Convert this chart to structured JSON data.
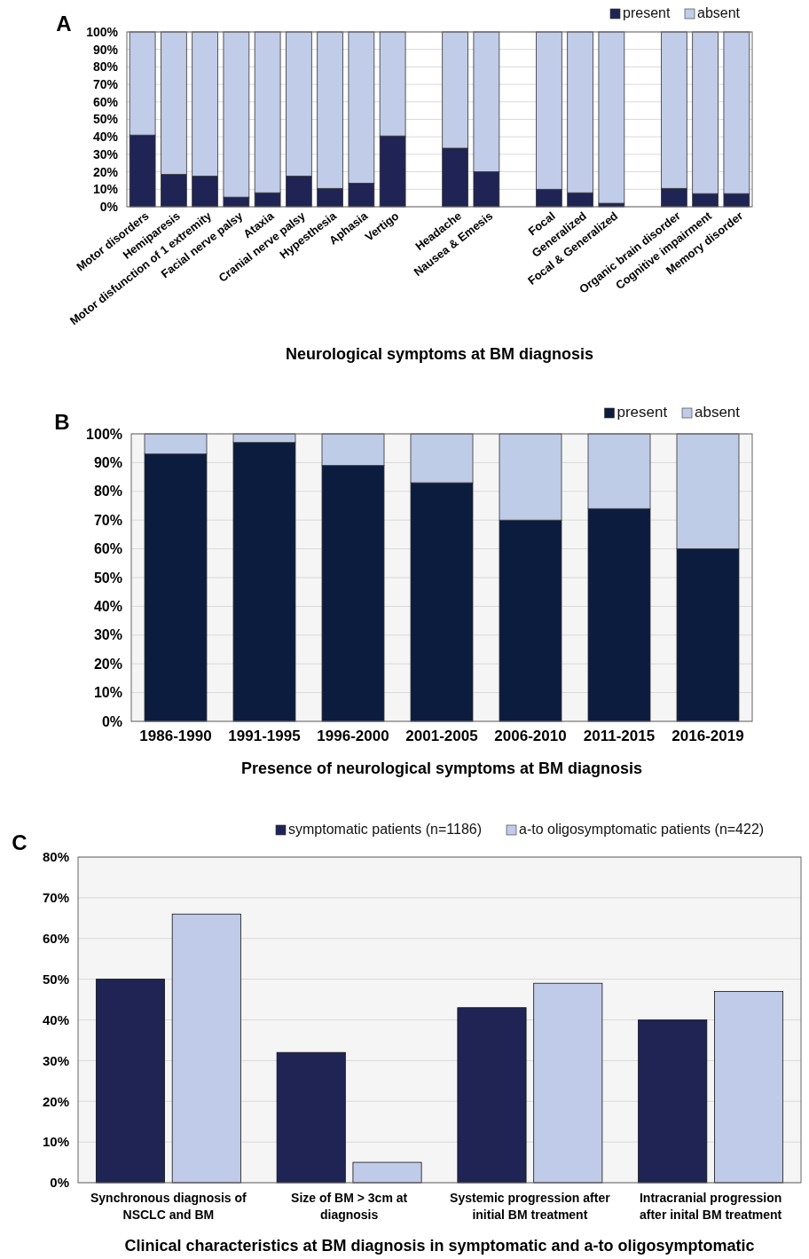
{
  "chart_data": [
    {
      "type": "bar",
      "title": "Neurological symptoms at BM diagnosis",
      "annotations": [
        "A"
      ],
      "stacked": true,
      "categories": [
        "Motor disorders",
        "Hemiparesis",
        "Motor disfunction of 1 extremity",
        "Facial nerve palsy",
        "Ataxia",
        "Cranial nerve palsy",
        "Hypesthesia",
        "Aphasia",
        "Vertigo",
        null,
        "Headache",
        "Nausea & Emesis",
        null,
        "Focal",
        "Generalized",
        "Focal & Generalized",
        null,
        "Organic brain disorder",
        "Cognitive impairment",
        "Memory disorder"
      ],
      "series": [
        {
          "name": "present",
          "color": "#1f2455",
          "values": [
            41,
            18.5,
            17.5,
            5.5,
            8,
            17.5,
            10.5,
            13.5,
            40.5,
            null,
            33.5,
            20,
            null,
            10,
            8,
            2,
            null,
            10.5,
            7.5,
            7.5
          ]
        },
        {
          "name": "absent",
          "color": "#c1cce9",
          "values": [
            59,
            81.5,
            82.5,
            94.5,
            92,
            82.5,
            89.5,
            86.5,
            59.5,
            null,
            66.5,
            80,
            null,
            90,
            92,
            98,
            null,
            89.5,
            92.5,
            92.5
          ]
        }
      ],
      "ylim": [
        0,
        100
      ],
      "yticks": [
        {
          "value": 0,
          "label": "0%"
        },
        {
          "value": 10,
          "label": "10%"
        },
        {
          "value": 20,
          "label": "20%"
        },
        {
          "value": 30,
          "label": "30%"
        },
        {
          "value": 40,
          "label": "40%"
        },
        {
          "value": 50,
          "label": "50%"
        },
        {
          "value": 60,
          "label": "60%"
        },
        {
          "value": 70,
          "label": "70%"
        },
        {
          "value": 80,
          "label": "80%"
        },
        {
          "value": 90,
          "label": "90%"
        },
        {
          "value": 100,
          "label": "100%"
        }
      ],
      "grid": "y",
      "legend": "top right"
    },
    {
      "type": "bar",
      "title": "Presence of neurological symptoms at BM diagnosis",
      "annotations": [
        "B"
      ],
      "stacked": true,
      "categories": [
        "1986-1990",
        "1991-1995",
        "1996-2000",
        "2001-2005",
        "2006-2010",
        "2011-2015",
        "2016-2019"
      ],
      "series": [
        {
          "name": "present",
          "color": "#0b1c3f",
          "values": [
            93,
            97,
            89,
            83,
            70,
            74,
            60
          ]
        },
        {
          "name": "absent",
          "color": "#bfcce8",
          "values": [
            7,
            3,
            11,
            17,
            30,
            26,
            40
          ]
        }
      ],
      "ylim": [
        0,
        100
      ],
      "yticks": [
        {
          "value": 0,
          "label": "0%"
        },
        {
          "value": 10,
          "label": "10%"
        },
        {
          "value": 20,
          "label": "20%"
        },
        {
          "value": 30,
          "label": "30%"
        },
        {
          "value": 40,
          "label": "40%"
        },
        {
          "value": 50,
          "label": "50%"
        },
        {
          "value": 60,
          "label": "60%"
        },
        {
          "value": 70,
          "label": "70%"
        },
        {
          "value": 80,
          "label": "80%"
        },
        {
          "value": 90,
          "label": "90%"
        },
        {
          "value": 100,
          "label": "100%"
        }
      ],
      "grid": "y",
      "legend": "top right"
    },
    {
      "type": "bar",
      "title": "Clinical characteristics at BM diagnosis in symptomatic and a-to oligosymptomatic",
      "annotations": [
        "C"
      ],
      "categories": [
        "Synchronous diagnosis of\nNSCLC and BM",
        "Size of BM > 3cm at\ndiagnosis",
        "Systemic progression after\ninitial BM treatment",
        "Intracranial progression\nafter inital BM treatment"
      ],
      "series": [
        {
          "name": "symptomatic patients (n=1186)",
          "color": "#1f2455",
          "values": [
            50,
            32,
            43,
            40
          ]
        },
        {
          "name": "a-to oligosymptomatic patients (n=422)",
          "color": "#c0cbe9",
          "values": [
            66,
            5,
            49,
            47
          ]
        }
      ],
      "ylim": [
        0,
        80
      ],
      "yticks": [
        {
          "value": 0,
          "label": "0%"
        },
        {
          "value": 10,
          "label": "10%"
        },
        {
          "value": 20,
          "label": "20%"
        },
        {
          "value": 30,
          "label": "30%"
        },
        {
          "value": 40,
          "label": "40%"
        },
        {
          "value": 50,
          "label": "50%"
        },
        {
          "value": 60,
          "label": "60%"
        },
        {
          "value": 70,
          "label": "70%"
        },
        {
          "value": 80,
          "label": "80%"
        }
      ],
      "grid": "y",
      "legend": "top right"
    }
  ]
}
